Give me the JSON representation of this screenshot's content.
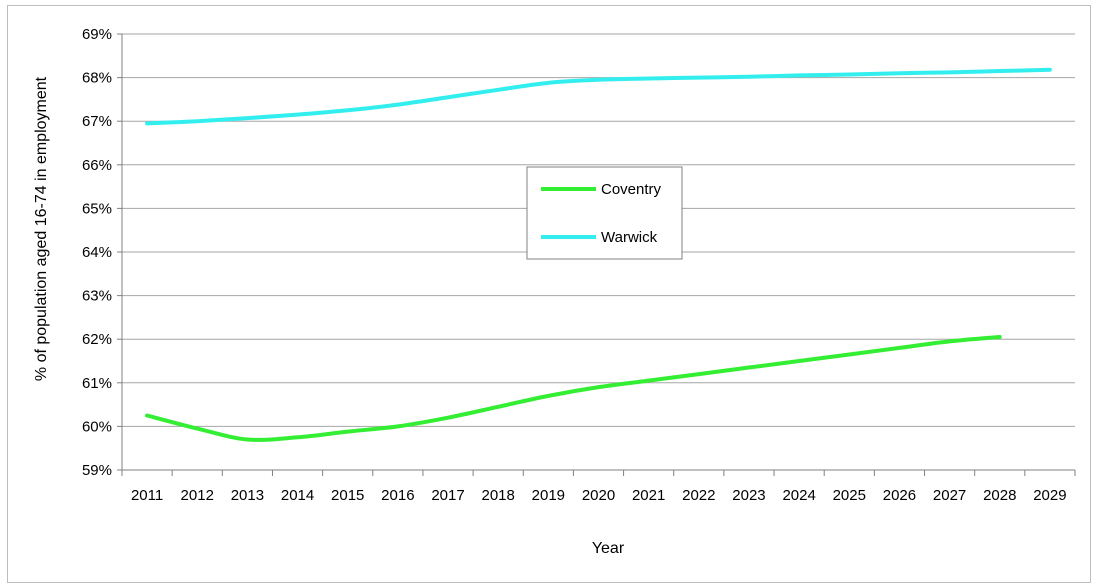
{
  "chart_data": {
    "type": "line",
    "title": "",
    "xlabel": "Year",
    "ylabel": "% of population aged 16-74 in employment",
    "ylim": [
      59,
      69
    ],
    "y_ticks": [
      "59%",
      "60%",
      "61%",
      "62%",
      "63%",
      "64%",
      "65%",
      "66%",
      "67%",
      "68%",
      "69%"
    ],
    "categories": [
      "2011",
      "2012",
      "2013",
      "2014",
      "2015",
      "2016",
      "2017",
      "2018",
      "2019",
      "2020",
      "2021",
      "2022",
      "2023",
      "2024",
      "2025",
      "2026",
      "2027",
      "2028",
      "2029"
    ],
    "grid": true,
    "legend_placement": "center",
    "series": [
      {
        "name": "Coventry",
        "color": "#33ee33",
        "values": [
          60.25,
          59.95,
          59.7,
          59.75,
          59.88,
          60.0,
          60.2,
          60.45,
          60.7,
          60.9,
          61.05,
          61.2,
          61.35,
          61.5,
          61.65,
          61.8,
          61.95,
          62.05,
          null
        ]
      },
      {
        "name": "Warwick",
        "color": "#33eeee",
        "values": [
          66.95,
          67.0,
          67.07,
          67.15,
          67.25,
          67.38,
          67.55,
          67.72,
          67.88,
          67.95,
          67.98,
          68.0,
          68.02,
          68.05,
          68.07,
          68.1,
          68.12,
          68.15,
          68.18
        ]
      }
    ]
  }
}
